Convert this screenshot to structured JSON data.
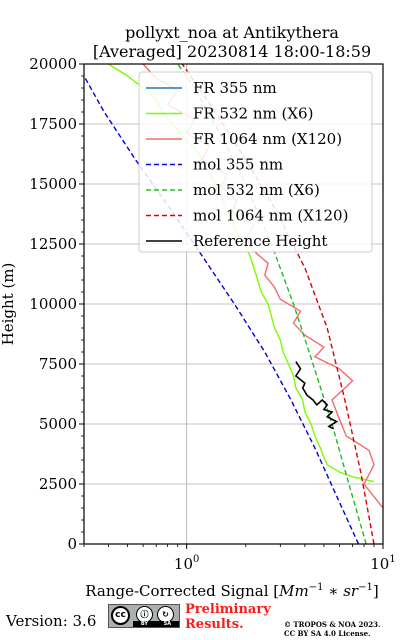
{
  "chart_data": {
    "type": "line",
    "title": "pollyxt_noa at Antikythera",
    "subtitle": "[Averaged] 20230814 18:00-18:59",
    "xlabel": "Range-Corrected Signal [",
    "xlabel_math": "Mm",
    "xlabel_math_sup": "−1",
    "xlabel_math_mid": " ∗ sr",
    "xlabel_math_sup2": "−1",
    "xlabel_close": "]",
    "ylabel": "Height (m)",
    "xscale": "log",
    "xlim": [
      0.3,
      10
    ],
    "ylim": [
      0,
      20000
    ],
    "grid": true,
    "x_ticks": [
      {
        "value": 1,
        "base": "10",
        "exp": "0"
      },
      {
        "value": 10,
        "base": "10",
        "exp": "1"
      }
    ],
    "y_ticks": [
      {
        "value": 0,
        "label": "0"
      },
      {
        "value": 2500,
        "label": "2500"
      },
      {
        "value": 5000,
        "label": "5000"
      },
      {
        "value": 7500,
        "label": "7500"
      },
      {
        "value": 10000,
        "label": "10000"
      },
      {
        "value": 12500,
        "label": "12500"
      },
      {
        "value": 15000,
        "label": "15000"
      },
      {
        "value": 17500,
        "label": "17500"
      },
      {
        "value": 20000,
        "label": "20000"
      }
    ],
    "legend_position": "top-right",
    "series": [
      {
        "name": "FR 355 nm",
        "color": "#1f77b4",
        "style": "solid",
        "points": []
      },
      {
        "name": "FR 532 nm (X6)",
        "color": "#7cfc00",
        "style": "solid",
        "points": [
          [
            9.0,
            2600
          ],
          [
            7.0,
            2800
          ],
          [
            6.0,
            3000
          ],
          [
            5.2,
            3300
          ],
          [
            5.0,
            3600
          ],
          [
            4.8,
            4000
          ],
          [
            4.5,
            4500
          ],
          [
            4.3,
            5000
          ],
          [
            4.0,
            5500
          ],
          [
            3.9,
            6000
          ],
          [
            3.6,
            6500
          ],
          [
            3.5,
            7000
          ],
          [
            3.3,
            7500
          ],
          [
            3.1,
            8000
          ],
          [
            3.0,
            8500
          ],
          [
            2.8,
            9000
          ],
          [
            2.7,
            9500
          ],
          [
            2.6,
            10000
          ],
          [
            2.4,
            10500
          ],
          [
            2.3,
            11000
          ],
          [
            2.2,
            11500
          ],
          [
            2.1,
            12000
          ],
          [
            2.0,
            12500
          ],
          [
            1.8,
            13000
          ],
          [
            1.7,
            13500
          ],
          [
            1.6,
            14000
          ],
          [
            1.5,
            14500
          ],
          [
            1.4,
            15000
          ],
          [
            1.3,
            15500
          ],
          [
            1.2,
            16000
          ],
          [
            1.1,
            16500
          ],
          [
            0.95,
            17000
          ],
          [
            0.85,
            17500
          ],
          [
            0.75,
            18000
          ],
          [
            0.7,
            18500
          ],
          [
            0.6,
            19000
          ],
          [
            0.5,
            19500
          ],
          [
            0.4,
            20000
          ]
        ]
      },
      {
        "name": "FR 1064 nm (X120)",
        "color": "#f26b6b",
        "style": "solid",
        "points": [
          [
            10.0,
            1500
          ],
          [
            8.0,
            2500
          ],
          [
            9.0,
            3300
          ],
          [
            8.5,
            3900
          ],
          [
            6.5,
            4500
          ],
          [
            6.0,
            5200
          ],
          [
            5.5,
            6000
          ],
          [
            7.0,
            6800
          ],
          [
            6.0,
            7300
          ],
          [
            4.5,
            7800
          ],
          [
            5.0,
            8200
          ],
          [
            4.0,
            8700
          ],
          [
            3.5,
            9200
          ],
          [
            3.8,
            9700
          ],
          [
            3.0,
            10200
          ],
          [
            2.8,
            10700
          ],
          [
            2.5,
            11200
          ],
          [
            2.6,
            11700
          ],
          [
            2.2,
            12200
          ],
          [
            2.0,
            12700
          ],
          [
            2.2,
            13300
          ],
          [
            1.7,
            13800
          ],
          [
            1.8,
            14300
          ],
          [
            1.5,
            14900
          ],
          [
            1.6,
            15400
          ],
          [
            1.2,
            16000
          ],
          [
            1.3,
            16600
          ],
          [
            1.0,
            17100
          ],
          [
            1.1,
            17700
          ],
          [
            0.8,
            18300
          ],
          [
            0.9,
            18900
          ],
          [
            0.7,
            19400
          ],
          [
            0.6,
            20000
          ]
        ]
      },
      {
        "name": "mol 355 nm",
        "color": "#0000dd",
        "style": "dashed",
        "points": [
          [
            7.5,
            0
          ],
          [
            5.8,
            2000
          ],
          [
            4.5,
            4000
          ],
          [
            3.4,
            6000
          ],
          [
            2.5,
            8000
          ],
          [
            1.75,
            10000
          ],
          [
            1.2,
            12000
          ],
          [
            0.82,
            14000
          ],
          [
            0.55,
            16000
          ],
          [
            0.38,
            18000
          ],
          [
            0.3,
            19500
          ]
        ]
      },
      {
        "name": "mol 532 nm (X6)",
        "color": "#22bb22",
        "style": "dashed",
        "points": [
          [
            8.2,
            0
          ],
          [
            6.7,
            2500
          ],
          [
            5.5,
            5000
          ],
          [
            4.4,
            7500
          ],
          [
            3.5,
            10000
          ],
          [
            2.7,
            12500
          ],
          [
            2.0,
            15000
          ],
          [
            1.5,
            17000
          ],
          [
            1.1,
            19000
          ],
          [
            0.9,
            20000
          ]
        ]
      },
      {
        "name": "mol 1064 nm (X120)",
        "color": "#dd0000",
        "style": "dashed",
        "points": [
          [
            9.0,
            0
          ],
          [
            7.7,
            3000
          ],
          [
            6.4,
            6000
          ],
          [
            5.2,
            9000
          ],
          [
            4.0,
            11500
          ],
          [
            2.8,
            14000
          ],
          [
            2.0,
            16000
          ],
          [
            1.4,
            18000
          ],
          [
            0.95,
            20000
          ]
        ]
      },
      {
        "name": "Reference Height",
        "color": "#000000",
        "style": "solid",
        "points": [
          [
            3.6,
            7600
          ],
          [
            3.8,
            7300
          ],
          [
            3.6,
            7000
          ],
          [
            4.0,
            6700
          ],
          [
            3.9,
            6500
          ],
          [
            4.1,
            6200
          ],
          [
            4.4,
            6000
          ],
          [
            4.6,
            5800
          ],
          [
            4.9,
            6000
          ],
          [
            5.2,
            5800
          ],
          [
            5.0,
            5600
          ],
          [
            5.5,
            5500
          ],
          [
            5.2,
            5300
          ],
          [
            5.8,
            5100
          ],
          [
            5.3,
            4900
          ],
          [
            5.6,
            4800
          ]
        ]
      }
    ]
  },
  "footer": {
    "version": "Version: 3.6",
    "license_badge": {
      "cc": "cc",
      "by": "BY",
      "sa": "SA"
    },
    "preliminary_line1": "Preliminary",
    "preliminary_line2": "Results.",
    "copyright_line1": "© TROPOS & NOA 2023.",
    "copyright_line2": "CC BY SA 4.0 License."
  }
}
